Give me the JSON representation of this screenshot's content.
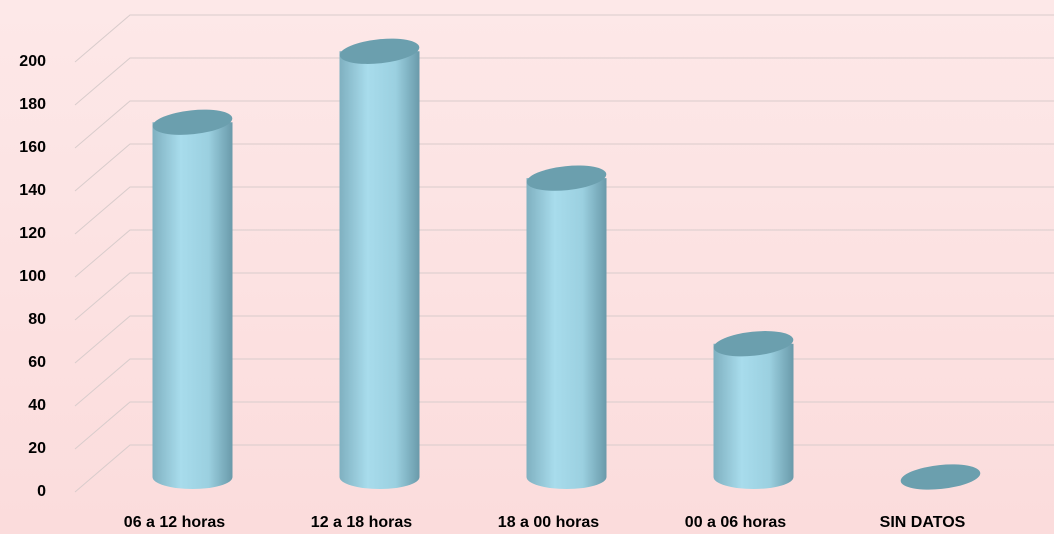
{
  "chart_data": {
    "type": "bar3d",
    "categories": [
      "06 a 12  horas",
      "12 a 18 horas",
      "18 a 00 horas",
      "00 a 06 horas",
      "SIN DATOS"
    ],
    "values": [
      165,
      198,
      139,
      62,
      0
    ],
    "color": "#9bd0e0",
    "ylim": [
      0,
      200
    ],
    "yticks": [
      0,
      20,
      40,
      60,
      80,
      100,
      120,
      140,
      160,
      180,
      200
    ],
    "grid": true
  }
}
